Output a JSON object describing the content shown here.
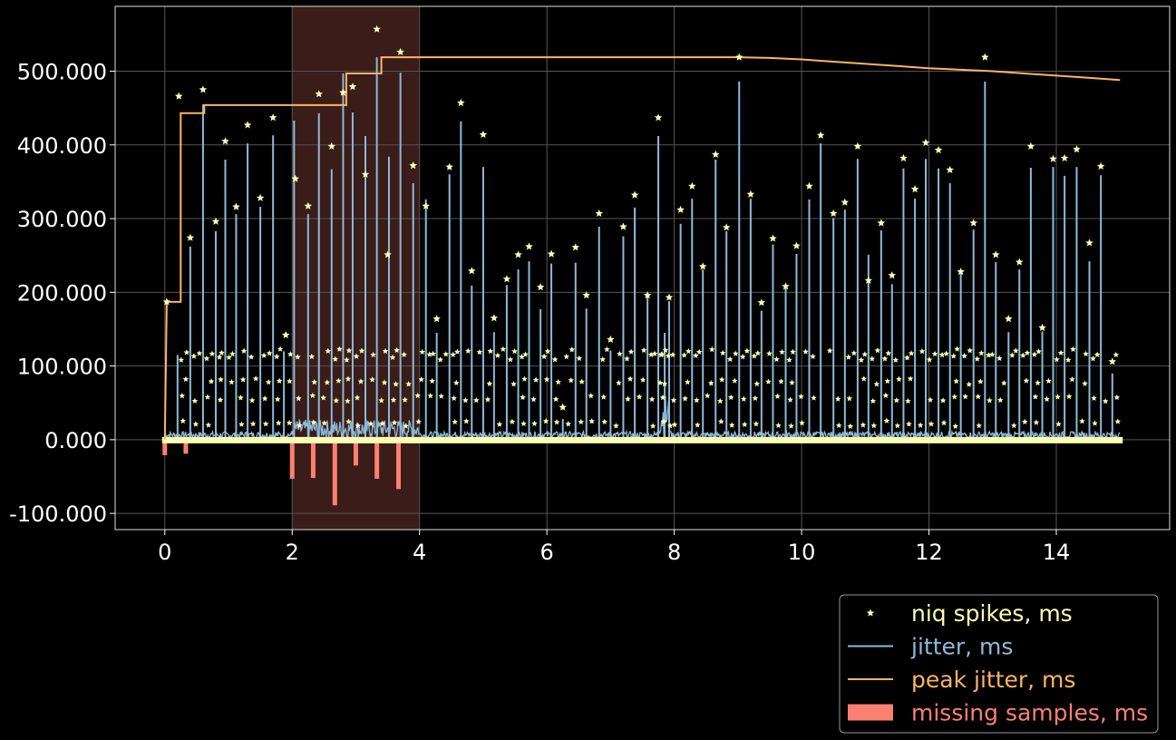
{
  "chart_data": {
    "type": "line",
    "title": "",
    "xlabel": "",
    "ylabel": "",
    "xlim": [
      -0.78,
      15.78
    ],
    "ylim": [
      -122,
      588
    ],
    "x_ticks": [
      0,
      2,
      4,
      6,
      8,
      10,
      12,
      14
    ],
    "y_ticks": [
      -100,
      0,
      100,
      200,
      300,
      400,
      500
    ],
    "x_tick_labels": [
      "0",
      "2",
      "4",
      "6",
      "8",
      "10",
      "12",
      "14"
    ],
    "y_tick_labels": [
      "-100.000",
      "0.000",
      "100.000",
      "200.000",
      "300.000",
      "400.000",
      "500.000"
    ],
    "grid": true,
    "legend_position": "bottom-right, outside plot",
    "highlight_span": {
      "x": [
        2,
        4
      ],
      "color": "#3a1c19"
    },
    "colors": {
      "background": "#000000",
      "spikes": "#ffffb3",
      "jitter": "#8dbad8",
      "peak": "#fdb462",
      "missing": "#fb8072",
      "grid": "#555555"
    },
    "series": [
      {
        "name": "niq spikes, ms",
        "kind": "scatter",
        "points": [
          [
            0.03,
            187
          ],
          [
            0.22,
            466
          ],
          [
            0.4,
            274
          ],
          [
            0.6,
            475
          ],
          [
            0.8,
            296
          ],
          [
            0.95,
            405
          ],
          [
            1.12,
            316
          ],
          [
            1.3,
            427
          ],
          [
            1.5,
            328
          ],
          [
            1.7,
            437
          ],
          [
            1.9,
            142
          ],
          [
            2.05,
            354
          ],
          [
            2.25,
            317
          ],
          [
            2.42,
            469
          ],
          [
            2.62,
            398
          ],
          [
            2.8,
            471
          ],
          [
            2.95,
            479
          ],
          [
            3.15,
            360
          ],
          [
            3.33,
            557
          ],
          [
            3.5,
            251
          ],
          [
            3.7,
            526
          ],
          [
            3.9,
            372
          ],
          [
            4.1,
            317
          ],
          [
            4.27,
            164
          ],
          [
            4.47,
            370
          ],
          [
            4.65,
            457
          ],
          [
            4.82,
            229
          ],
          [
            5.0,
            414
          ],
          [
            5.17,
            165
          ],
          [
            5.37,
            218
          ],
          [
            5.55,
            251
          ],
          [
            5.72,
            262
          ],
          [
            5.9,
            207
          ],
          [
            6.07,
            252
          ],
          [
            6.25,
            44
          ],
          [
            6.45,
            261
          ],
          [
            6.62,
            196
          ],
          [
            6.82,
            307
          ],
          [
            7.0,
            136
          ],
          [
            7.2,
            289
          ],
          [
            7.38,
            332
          ],
          [
            7.58,
            196
          ],
          [
            7.75,
            437
          ],
          [
            7.92,
            193
          ],
          [
            8.1,
            312
          ],
          [
            8.28,
            344
          ],
          [
            8.45,
            235
          ],
          [
            8.65,
            387
          ],
          [
            8.82,
            288
          ],
          [
            9.02,
            519
          ],
          [
            9.2,
            333
          ],
          [
            9.37,
            186
          ],
          [
            9.55,
            273
          ],
          [
            9.75,
            208
          ],
          [
            9.92,
            263
          ],
          [
            10.12,
            344
          ],
          [
            10.3,
            413
          ],
          [
            10.5,
            307
          ],
          [
            10.68,
            322
          ],
          [
            10.88,
            398
          ],
          [
            11.05,
            216
          ],
          [
            11.25,
            294
          ],
          [
            11.42,
            223
          ],
          [
            11.6,
            382
          ],
          [
            11.78,
            340
          ],
          [
            11.95,
            403
          ],
          [
            12.15,
            393
          ],
          [
            12.33,
            366
          ],
          [
            12.5,
            228
          ],
          [
            12.7,
            294
          ],
          [
            12.88,
            519
          ],
          [
            13.05,
            251
          ],
          [
            13.25,
            164
          ],
          [
            13.42,
            241
          ],
          [
            13.6,
            398
          ],
          [
            13.78,
            152
          ],
          [
            13.95,
            381
          ],
          [
            14.13,
            382
          ],
          [
            14.32,
            394
          ],
          [
            14.52,
            267
          ],
          [
            14.7,
            371
          ],
          [
            14.88,
            106
          ]
        ]
      },
      {
        "name": "jitter, ms",
        "kind": "spikes",
        "points": [
          [
            0.2,
            115
          ],
          [
            0.4,
            262
          ],
          [
            0.6,
            455
          ],
          [
            0.8,
            283
          ],
          [
            0.95,
            380
          ],
          [
            1.12,
            306
          ],
          [
            1.3,
            402
          ],
          [
            1.5,
            316
          ],
          [
            1.7,
            413
          ],
          [
            1.87,
            120
          ],
          [
            2.03,
            433
          ],
          [
            2.25,
            306
          ],
          [
            2.42,
            443
          ],
          [
            2.62,
            367
          ],
          [
            2.8,
            497
          ],
          [
            2.95,
            444
          ],
          [
            3.15,
            412
          ],
          [
            3.33,
            519
          ],
          [
            3.52,
            384
          ],
          [
            3.7,
            498
          ],
          [
            3.9,
            348
          ],
          [
            4.1,
            326
          ],
          [
            4.27,
            145
          ],
          [
            4.47,
            360
          ],
          [
            4.65,
            432
          ],
          [
            4.82,
            209
          ],
          [
            5.0,
            370
          ],
          [
            5.17,
            146
          ],
          [
            5.37,
            210
          ],
          [
            5.55,
            231
          ],
          [
            5.72,
            242
          ],
          [
            5.9,
            177
          ],
          [
            6.07,
            239
          ],
          [
            6.25,
            28
          ],
          [
            6.45,
            240
          ],
          [
            6.62,
            178
          ],
          [
            6.82,
            289
          ],
          [
            7.0,
            121
          ],
          [
            7.2,
            276
          ],
          [
            7.38,
            315
          ],
          [
            7.58,
            198
          ],
          [
            7.75,
            412
          ],
          [
            7.85,
            145
          ],
          [
            7.92,
            188
          ],
          [
            8.1,
            293
          ],
          [
            8.28,
            327
          ],
          [
            8.45,
            231
          ],
          [
            8.65,
            380
          ],
          [
            8.82,
            283
          ],
          [
            9.02,
            486
          ],
          [
            9.2,
            327
          ],
          [
            9.37,
            175
          ],
          [
            9.55,
            265
          ],
          [
            9.75,
            208
          ],
          [
            9.92,
            252
          ],
          [
            10.12,
            326
          ],
          [
            10.3,
            402
          ],
          [
            10.5,
            301
          ],
          [
            10.68,
            312
          ],
          [
            10.88,
            381
          ],
          [
            11.05,
            251
          ],
          [
            11.25,
            284
          ],
          [
            11.42,
            211
          ],
          [
            11.6,
            368
          ],
          [
            11.78,
            327
          ],
          [
            11.95,
            381
          ],
          [
            12.15,
            368
          ],
          [
            12.33,
            348
          ],
          [
            12.5,
            228
          ],
          [
            12.7,
            285
          ],
          [
            12.88,
            486
          ],
          [
            13.05,
            241
          ],
          [
            13.25,
            146
          ],
          [
            13.42,
            231
          ],
          [
            13.6,
            369
          ],
          [
            13.78,
            147
          ],
          [
            13.95,
            370
          ],
          [
            14.13,
            358
          ],
          [
            14.32,
            370
          ],
          [
            14.52,
            242
          ],
          [
            14.7,
            359
          ],
          [
            14.88,
            90
          ]
        ]
      },
      {
        "name": "peak jitter, ms",
        "kind": "line",
        "points": [
          [
            0,
            0
          ],
          [
            0.03,
            187
          ],
          [
            0.25,
            187
          ],
          [
            0.25,
            443
          ],
          [
            0.62,
            443
          ],
          [
            0.62,
            454
          ],
          [
            2.85,
            454
          ],
          [
            2.85,
            497
          ],
          [
            3.4,
            497
          ],
          [
            3.4,
            519
          ],
          [
            9.0,
            519
          ],
          [
            9.5,
            518
          ],
          [
            10.0,
            516
          ],
          [
            10.5,
            513
          ],
          [
            11.0,
            510
          ],
          [
            11.5,
            507
          ],
          [
            12.0,
            504
          ],
          [
            12.5,
            502
          ],
          [
            13.0,
            500
          ],
          [
            13.5,
            497
          ],
          [
            14.0,
            494
          ],
          [
            14.5,
            491
          ],
          [
            15.0,
            488
          ]
        ]
      },
      {
        "name": "missing samples, ms",
        "kind": "bar",
        "points": [
          [
            0.0,
            -21
          ],
          [
            0.33,
            -19
          ],
          [
            2.0,
            -53
          ],
          [
            2.33,
            -52
          ],
          [
            2.67,
            -89
          ],
          [
            3.0,
            -35
          ],
          [
            3.33,
            -53
          ],
          [
            3.67,
            -67
          ]
        ]
      }
    ]
  }
}
